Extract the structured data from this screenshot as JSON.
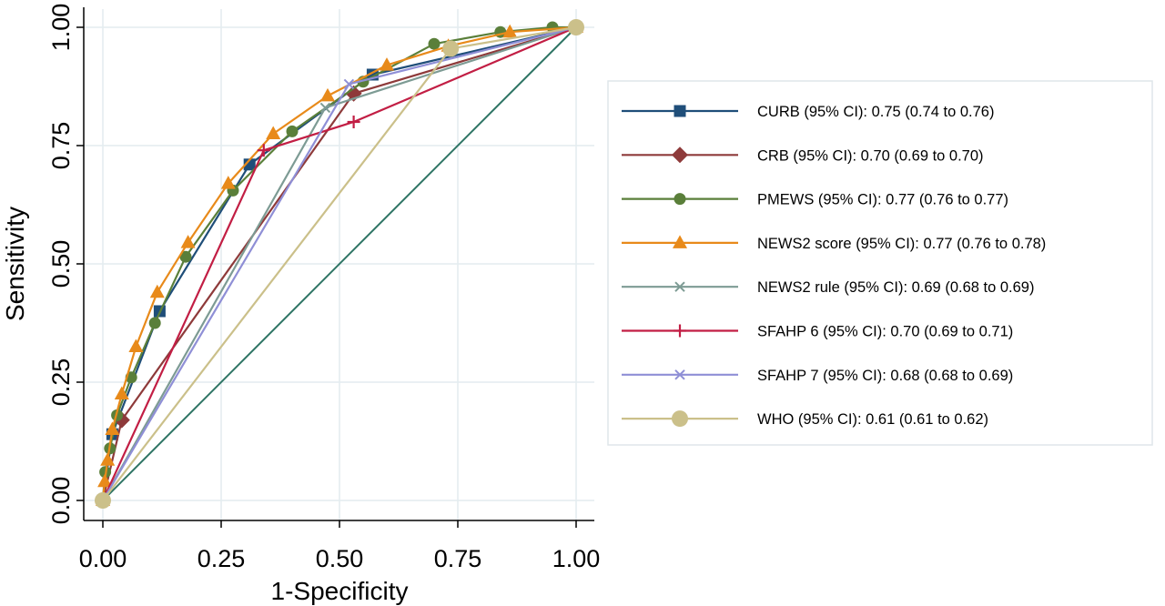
{
  "chart_data": {
    "type": "line",
    "xlabel": "1-Specificity",
    "ylabel": "Sensitivity",
    "xlim": [
      0,
      1
    ],
    "ylim": [
      0,
      1
    ],
    "xticks": [
      "0.00",
      "0.25",
      "0.50",
      "0.75",
      "1.00"
    ],
    "yticks": [
      "0.00",
      "0.25",
      "0.50",
      "0.75",
      "1.00"
    ],
    "grid": true,
    "legend_position": "right",
    "reference_line": {
      "x": [
        0,
        1
      ],
      "y": [
        0,
        1
      ],
      "color": "#2e7464"
    },
    "series": [
      {
        "name": "CURB (95% CI): 0.75 (0.74 to 0.76)",
        "color": "#1f4e79",
        "marker": "square",
        "x": [
          0,
          0.02,
          0.12,
          0.31,
          0.57,
          1
        ],
        "y": [
          0,
          0.14,
          0.4,
          0.71,
          0.9,
          1
        ]
      },
      {
        "name": "CRB (95% CI): 0.70 (0.69 to 0.70)",
        "color": "#8e3a3a",
        "marker": "diamond",
        "x": [
          0,
          0.04,
          0.53,
          1
        ],
        "y": [
          0,
          0.17,
          0.86,
          1
        ]
      },
      {
        "name": "PMEWS (95% CI): 0.77  (0.76 to 0.77)",
        "color": "#5a7f3a",
        "marker": "circle",
        "x": [
          0,
          0.005,
          0.015,
          0.03,
          0.06,
          0.11,
          0.175,
          0.275,
          0.4,
          0.55,
          0.7,
          0.84,
          0.95,
          1
        ],
        "y": [
          0,
          0.06,
          0.11,
          0.18,
          0.26,
          0.375,
          0.515,
          0.655,
          0.78,
          0.885,
          0.965,
          0.99,
          1.0,
          1
        ]
      },
      {
        "name": "NEWS2 score (95% CI): 0.77  (0.76 to 0.78)",
        "color": "#e88a1a",
        "marker": "triangle",
        "x": [
          0,
          0.004,
          0.01,
          0.02,
          0.04,
          0.07,
          0.115,
          0.18,
          0.265,
          0.36,
          0.475,
          0.6,
          0.73,
          0.86,
          1
        ],
        "y": [
          0,
          0.04,
          0.085,
          0.15,
          0.225,
          0.325,
          0.44,
          0.545,
          0.67,
          0.775,
          0.855,
          0.92,
          0.96,
          0.99,
          1
        ]
      },
      {
        "name": "NEWS2 rule (95% CI): 0.69  (0.68 to 0.69)",
        "color": "#7d9b94",
        "marker": "x",
        "x": [
          0,
          0.47,
          1
        ],
        "y": [
          0,
          0.83,
          1
        ]
      },
      {
        "name": "SFAHP 6 (95% CI): 0.70  (0.69 to 0.71)",
        "color": "#c21e44",
        "marker": "plus",
        "x": [
          0,
          0.34,
          0.53,
          1
        ],
        "y": [
          0,
          0.74,
          0.8,
          1
        ]
      },
      {
        "name": "SFAHP 7 (95% CI): 0.68  (0.68 to 0.69)",
        "color": "#8f8fd6",
        "marker": "x",
        "x": [
          0,
          0.52,
          1
        ],
        "y": [
          0,
          0.88,
          1
        ]
      },
      {
        "name": "WHO (95% CI): 0.61  (0.61 to 0.62)",
        "color": "#cbc08a",
        "marker": "bigcircle",
        "x": [
          0,
          0.735,
          1
        ],
        "y": [
          0,
          0.955,
          1
        ]
      }
    ]
  }
}
